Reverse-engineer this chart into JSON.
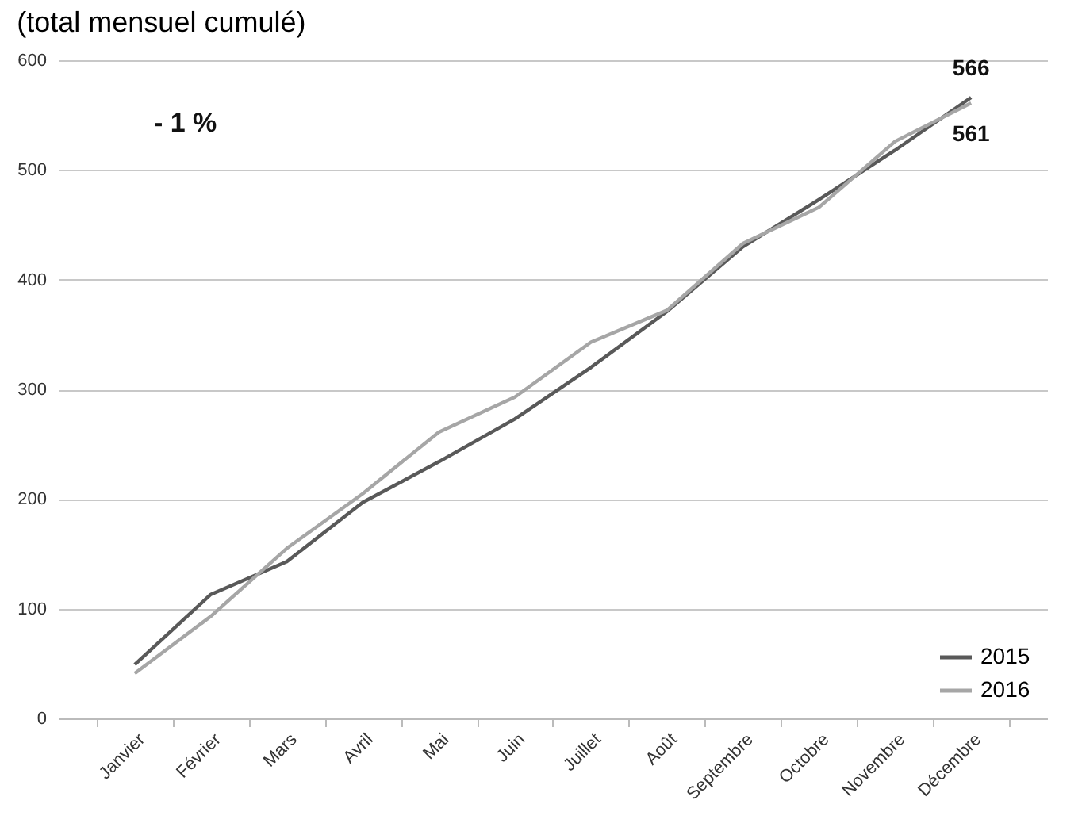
{
  "chart_data": {
    "type": "line",
    "title": "(total mensuel cumulé)",
    "categories": [
      "Janvier",
      "Février",
      "Mars",
      "Avril",
      "Mai",
      "Juin",
      "Juillet",
      "Août",
      "Septembre",
      "Octobre",
      "Novembre",
      "Décembre"
    ],
    "series": [
      {
        "name": "2015",
        "color": "#595959",
        "values": [
          49,
          113,
          143,
          197,
          234,
          273,
          320,
          371,
          430,
          473,
          518,
          566
        ],
        "value_labels": [
          null,
          null,
          null,
          null,
          null,
          null,
          null,
          null,
          null,
          null,
          null,
          "566"
        ]
      },
      {
        "name": "2016",
        "color": "#a6a6a6",
        "values": [
          41,
          93,
          155,
          205,
          261,
          293,
          343,
          372,
          433,
          466,
          526,
          561
        ],
        "value_labels": [
          null,
          null,
          null,
          null,
          null,
          null,
          null,
          null,
          null,
          null,
          null,
          "561"
        ]
      }
    ],
    "ylim": [
      0,
      600
    ],
    "yticks": [
      0,
      100,
      200,
      300,
      400,
      500,
      600
    ],
    "annotations": [
      "- 1 %"
    ],
    "grid": "y",
    "legend": "bottom right",
    "marker": "none",
    "line_style": "solid"
  }
}
